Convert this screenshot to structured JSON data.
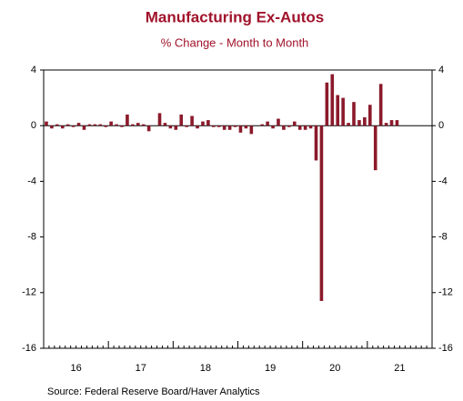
{
  "chart_data": {
    "type": "bar",
    "title": "Manufacturing Ex-Autos",
    "subtitle": "% Change - Month to Month",
    "source": "Source:  Federal Reserve Board/Haver Analytics",
    "year_labels": [
      "16",
      "17",
      "18",
      "19",
      "20",
      "21"
    ],
    "values": [
      0.3,
      -0.2,
      0.1,
      -0.2,
      0.1,
      -0.1,
      0.2,
      -0.3,
      0.1,
      0.1,
      0.1,
      -0.1,
      0.3,
      0.1,
      -0.1,
      0.8,
      0.1,
      0.2,
      0.1,
      -0.4,
      0.0,
      0.9,
      0.2,
      -0.2,
      -0.3,
      0.8,
      -0.1,
      0.7,
      -0.2,
      0.3,
      0.4,
      -0.1,
      -0.1,
      -0.3,
      -0.3,
      -0.1,
      -0.5,
      -0.2,
      -0.6,
      0.0,
      0.1,
      0.3,
      -0.2,
      0.5,
      -0.3,
      -0.1,
      0.3,
      -0.3,
      -0.3,
      -0.2,
      -2.5,
      -12.6,
      3.1,
      3.7,
      2.2,
      2.0,
      0.2,
      1.7,
      0.4,
      0.6,
      1.5,
      -3.2,
      3.0,
      0.2,
      0.4,
      0.4
    ],
    "color": "#8b1a2b",
    "ylim": [
      -16,
      4
    ],
    "yticks": [
      4,
      0,
      -4,
      -8,
      -12,
      -16
    ]
  }
}
